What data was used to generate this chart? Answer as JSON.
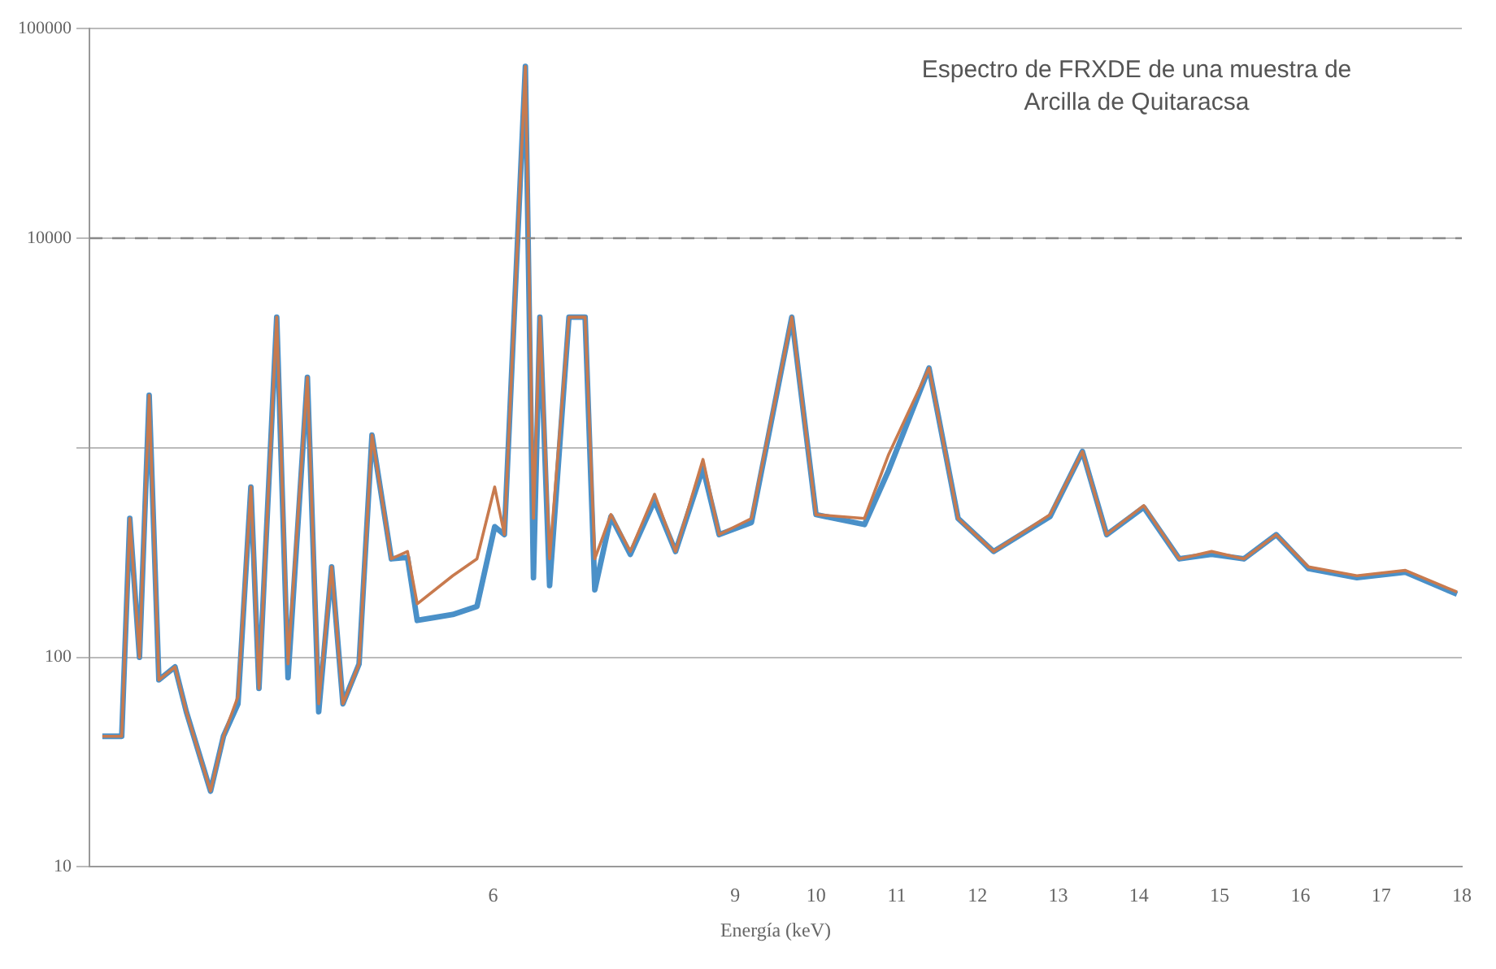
{
  "chart_data": {
    "type": "line",
    "title": "Espectro de FRXDE de una muestra de Arcilla de Quitaracsa",
    "xlabel": "Energía (keV)",
    "x": [
      1.16,
      1.4,
      1.5,
      1.62,
      1.74,
      1.86,
      2.06,
      2.2,
      2.5,
      2.66,
      2.84,
      3.0,
      3.1,
      3.32,
      3.46,
      3.7,
      3.84,
      4.0,
      4.14,
      4.34,
      4.5,
      4.74,
      4.94,
      5.06,
      5.5,
      5.8,
      6.02,
      6.14,
      6.4,
      6.5,
      6.58,
      6.7,
      6.94,
      7.14,
      7.26,
      7.46,
      7.7,
      8.0,
      8.26,
      8.6,
      8.8,
      9.2,
      9.7,
      10.0,
      10.6,
      10.9,
      11.4,
      11.76,
      12.2,
      12.9,
      13.3,
      13.6,
      14.06,
      14.5,
      14.9,
      15.3,
      15.7,
      16.1,
      16.7,
      17.3,
      17.94
    ],
    "series": [
      {
        "color": "#4a90c8",
        "values": [
          42,
          42,
          460,
          100,
          1780,
          78,
          90,
          55,
          23,
          42,
          60,
          650,
          71,
          4200,
          80,
          2170,
          55,
          270,
          60,
          93,
          1150,
          295,
          300,
          150,
          160,
          175,
          420,
          385,
          66000,
          240,
          4200,
          220,
          4200,
          4200,
          210,
          470,
          310,
          560,
          320,
          800,
          385,
          440,
          4200,
          480,
          430,
          780,
          2400,
          460,
          320,
          470,
          960,
          385,
          520,
          295,
          310,
          295,
          385,
          265,
          240,
          255,
          200
        ]
      },
      {
        "color": "#c87a4e",
        "values": [
          42,
          42,
          460,
          100,
          1780,
          78,
          90,
          55,
          23,
          42,
          65,
          650,
          71,
          4200,
          93,
          2170,
          60,
          270,
          60,
          93,
          1150,
          295,
          320,
          180,
          245,
          295,
          650,
          385,
          66000,
          460,
          4200,
          295,
          4200,
          4200,
          295,
          480,
          320,
          600,
          320,
          880,
          385,
          460,
          4200,
          480,
          460,
          930,
          2400,
          460,
          320,
          480,
          960,
          385,
          530,
          295,
          320,
          295,
          385,
          270,
          245,
          260,
          205
        ]
      }
    ],
    "xlim": [
      1,
      18
    ],
    "xticks": [
      6,
      9,
      10,
      11,
      12,
      13,
      14,
      15,
      16,
      17,
      18
    ],
    "ylim": [
      10,
      100000
    ],
    "yticks": [
      10,
      100,
      {
        "value": 1000,
        "label": null
      },
      10000,
      100000
    ],
    "log": "y",
    "grid": "y",
    "legend": false,
    "marker": "none",
    "line_style": "solid",
    "ref_lines": [
      {
        "axis": "y",
        "value": 10000,
        "line_style": "dashed",
        "color": "#888888"
      }
    ]
  }
}
